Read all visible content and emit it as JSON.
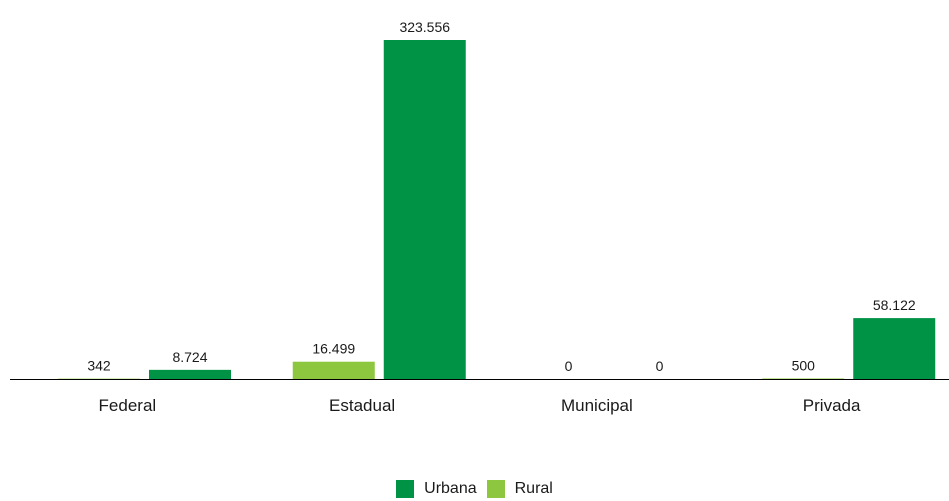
{
  "chart_data": {
    "type": "bar",
    "categories": [
      "Federal",
      "Estadual",
      "Municipal",
      "Privada"
    ],
    "series": [
      {
        "name": "Rural",
        "color": "#8dc63f",
        "values": [
          342,
          16499,
          0,
          500
        ],
        "labels": [
          "342",
          "16.499",
          "0",
          "500"
        ]
      },
      {
        "name": "Urbana",
        "color": "#009245",
        "values": [
          8724,
          323556,
          0,
          58122
        ],
        "labels": [
          "8.724",
          "323.556",
          "0",
          "58.122"
        ]
      }
    ],
    "ylim": [
      0,
      323556
    ],
    "legend_position": "bottom",
    "legend_order": [
      "Urbana",
      "Rural"
    ],
    "grid": false
  }
}
